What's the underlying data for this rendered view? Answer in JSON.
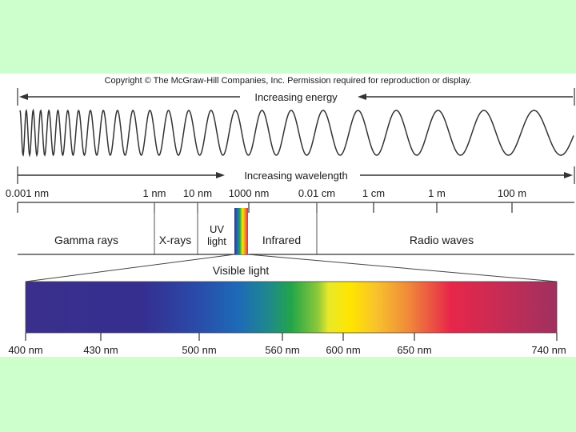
{
  "copyright": "Copyright © The McGraw-Hill Companies, Inc. Permission required for reproduction or display.",
  "energy_label": "Increasing energy",
  "wavelength_label": "Increasing wavelength",
  "scale_ticks": [
    "0.001 nm",
    "1 nm",
    "10 nm",
    "1000 nm",
    "0.01 cm",
    "1 cm",
    "1 m",
    "100 m"
  ],
  "regions": {
    "gamma": "Gamma rays",
    "xrays": "X-rays",
    "uv_line1": "UV",
    "uv_line2": "light",
    "infrared": "Infrared",
    "radio": "Radio waves"
  },
  "visible_label": "Visible light",
  "visible_ticks": [
    "400 nm",
    "430 nm",
    "500 nm",
    "560 nm",
    "600 nm",
    "650 nm",
    "740 nm"
  ],
  "colors": {
    "slide_background": "#ccffcc",
    "panel_background": "#ffffff",
    "line": "#333333",
    "violet": "#3a2f8c",
    "blue": "#1d6ab8",
    "green": "#1fa640",
    "yellow": "#ffe600",
    "orange": "#f7a72e",
    "red": "#e8264a",
    "deep_red": "#a83058"
  }
}
